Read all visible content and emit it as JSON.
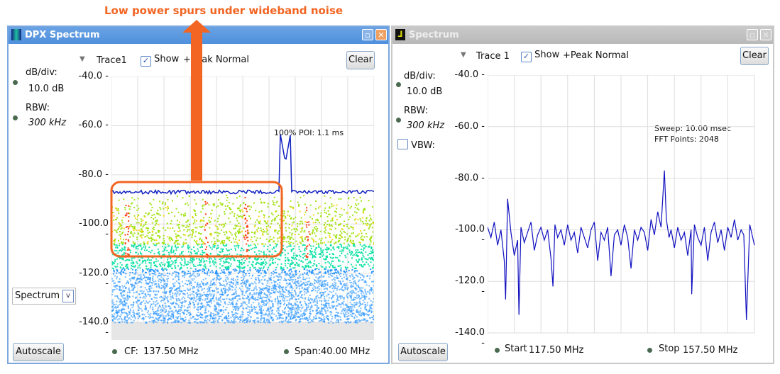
{
  "annotation": {
    "text": "Low power spurs under wideband noise",
    "color": "#f26522"
  },
  "dpx": {
    "title": "DPX Spectrum",
    "icon": "dpx-spectrum-icon",
    "trace_label": "Trace1",
    "show_label": "Show",
    "show_checked": true,
    "detector": "+Peak Normal",
    "clear": "Clear",
    "dbdiv_label": "dB/div:",
    "dbdiv_value": "10.0 dB",
    "rbw_label": "RBW:",
    "rbw_value": "300 kHz",
    "poi": "100% POI: 1.1 ms",
    "mode_select": "Spectrum",
    "autoscale": "Autoscale",
    "cf_label": "CF:",
    "cf_value": "137.50 MHz",
    "span_label": "Span:",
    "span_value": "40.00 MHz",
    "y_ticks": [
      "-40.0",
      "-60.0",
      "-80.0",
      "-100.0",
      "-120.0",
      "-140.0"
    ]
  },
  "spectrum": {
    "title": "Spectrum",
    "icon": "spectrum-icon",
    "trace_label": "Trace 1",
    "show_label": "Show",
    "show_checked": true,
    "detector": "+Peak Normal",
    "clear": "Clear",
    "dbdiv_label": "dB/div:",
    "dbdiv_value": "10.0 dB",
    "rbw_label": "RBW:",
    "rbw_value": "300 kHz",
    "vbw_label": "VBW:",
    "vbw_checked": false,
    "sweep": "Sweep: 10.00 msec",
    "fft": "FFT Points: 2048",
    "autoscale": "Autoscale",
    "start_label": "Start",
    "start_value": "117.50 MHz",
    "stop_label": "Stop",
    "stop_value": "157.50 MHz",
    "y_ticks": [
      "-40.0",
      "-60.0",
      "-80.0",
      "-100.0",
      "-120.0",
      "-140.0"
    ]
  },
  "chart_data": [
    {
      "type": "heatmap",
      "name": "DPX Spectrum",
      "xlim": [
        117.5,
        157.5
      ],
      "ylim": [
        -145,
        -40
      ],
      "grid": true,
      "max_hold_level": -87,
      "peak": {
        "x": 144,
        "y": -75
      },
      "spur_freqs": [
        119.8,
        131.9,
        137.9,
        147.3
      ],
      "noise_floor_top": -88,
      "colors": [
        "#1e90ff",
        "#00e0a0",
        "#9be000",
        "#ffd000",
        "#ff3000"
      ],
      "trace_color": "#1020c0"
    },
    {
      "type": "line",
      "name": "Spectrum",
      "xlim": [
        117.5,
        157.5
      ],
      "ylim": [
        -140,
        -40
      ],
      "grid": true,
      "line_color": "#1010c0",
      "x": [
        117.5,
        118,
        118.5,
        119,
        119.5,
        120,
        120.2,
        120.5,
        121,
        121.5,
        122,
        122.2,
        122.5,
        123,
        123.5,
        124,
        124.5,
        125,
        125.5,
        126,
        126.5,
        127,
        127.3,
        127.6,
        128,
        128.5,
        129,
        129.5,
        130,
        130.5,
        131,
        131.5,
        132,
        132.5,
        133,
        133.5,
        134,
        134.5,
        135,
        135.5,
        136,
        136.5,
        137,
        137.5,
        138,
        138.5,
        139,
        139.5,
        140,
        140.5,
        141,
        141.5,
        142,
        142.5,
        143,
        143.5,
        144,
        144.3,
        144.7,
        145,
        145.5,
        146,
        146.5,
        147,
        147.5,
        148,
        148.1,
        148.5,
        149,
        149.5,
        150,
        150.5,
        151,
        151.5,
        152,
        152.5,
        153,
        153.5,
        154,
        154.5,
        155,
        155.5,
        155.9,
        156.3,
        156.8,
        157.5
      ],
      "y": [
        -99,
        -103,
        -97,
        -106,
        -100,
        -112,
        -127,
        -88,
        -101,
        -110,
        -104,
        -133,
        -99,
        -105,
        -101,
        -97,
        -108,
        -102,
        -99,
        -104,
        -100,
        -111,
        -122,
        -98,
        -103,
        -100,
        -106,
        -98,
        -104,
        -101,
        -109,
        -99,
        -103,
        -107,
        -100,
        -97,
        -112,
        -101,
        -104,
        -99,
        -118,
        -102,
        -100,
        -106,
        -98,
        -103,
        -115,
        -100,
        -104,
        -99,
        -101,
        -108,
        -96,
        -102,
        -93,
        -99,
        -77,
        -96,
        -103,
        -100,
        -107,
        -99,
        -104,
        -101,
        -110,
        -100,
        -125,
        -98,
        -103,
        -106,
        -99,
        -112,
        -101,
        -97,
        -105,
        -100,
        -108,
        -99,
        -103,
        -96,
        -104,
        -100,
        -102,
        -135,
        -98,
        -106
      ]
    }
  ]
}
